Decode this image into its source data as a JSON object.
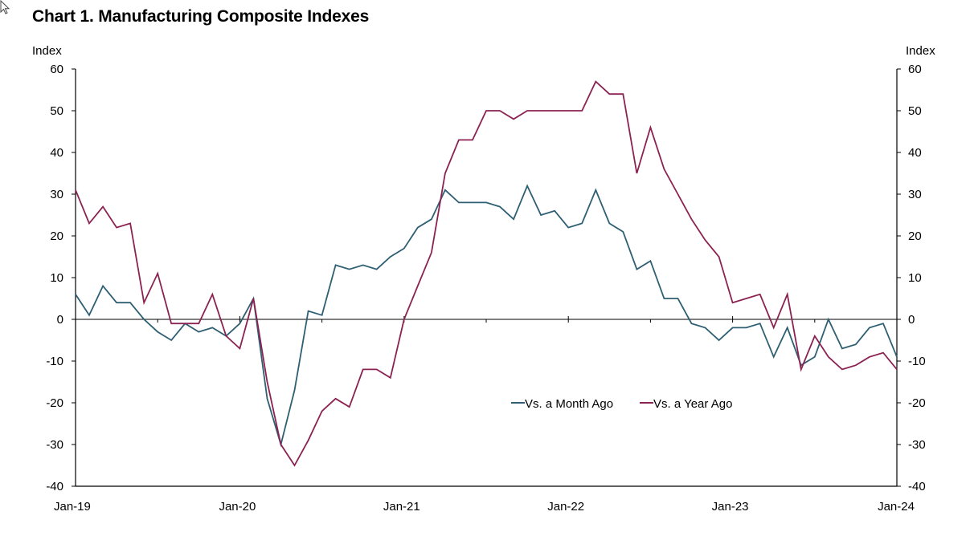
{
  "chart_data": {
    "type": "line",
    "title": "Chart 1. Manufacturing Composite Indexes",
    "ylabel_left": "Index",
    "ylabel_right": "Index",
    "ylim": [
      -40,
      60
    ],
    "yticks": [
      60,
      50,
      40,
      30,
      20,
      10,
      0,
      -10,
      -20,
      -30,
      -40
    ],
    "xtick_labels": [
      "Jan-19",
      "Jan-20",
      "Jan-21",
      "Jan-22",
      "Jan-23",
      "Jan-24"
    ],
    "x": [
      "2019-01",
      "2019-02",
      "2019-03",
      "2019-04",
      "2019-05",
      "2019-06",
      "2019-07",
      "2019-08",
      "2019-09",
      "2019-10",
      "2019-11",
      "2019-12",
      "2020-01",
      "2020-02",
      "2020-03",
      "2020-04",
      "2020-05",
      "2020-06",
      "2020-07",
      "2020-08",
      "2020-09",
      "2020-10",
      "2020-11",
      "2020-12",
      "2021-01",
      "2021-02",
      "2021-03",
      "2021-04",
      "2021-05",
      "2021-06",
      "2021-07",
      "2021-08",
      "2021-09",
      "2021-10",
      "2021-11",
      "2021-12",
      "2022-01",
      "2022-02",
      "2022-03",
      "2022-04",
      "2022-05",
      "2022-06",
      "2022-07",
      "2022-08",
      "2022-09",
      "2022-10",
      "2022-11",
      "2022-12",
      "2023-01",
      "2023-02",
      "2023-03",
      "2023-04",
      "2023-05",
      "2023-06",
      "2023-07",
      "2023-08",
      "2023-09",
      "2023-10",
      "2023-11",
      "2023-12",
      "2024-01"
    ],
    "legend_position": "lower-right inside",
    "grid": false,
    "series": [
      {
        "name": "Vs. a Month Ago",
        "color": "#2e5f73",
        "values": [
          6,
          1,
          8,
          4,
          4,
          0,
          -3,
          -5,
          -1,
          -3,
          -2,
          -4,
          -1,
          5,
          -19,
          -30,
          -17,
          2,
          1,
          13,
          12,
          13,
          12,
          15,
          17,
          22,
          24,
          31,
          28,
          28,
          28,
          27,
          24,
          32,
          25,
          26,
          22,
          23,
          31,
          23,
          21,
          12,
          14,
          5,
          5,
          -1,
          -2,
          -5,
          -2,
          -2,
          -1,
          -9,
          -2,
          -11,
          -9,
          0,
          -7,
          -6,
          -2,
          -1,
          -9
        ]
      },
      {
        "name": "Vs. a Year Ago",
        "color": "#8b2252",
        "values": [
          31,
          23,
          27,
          22,
          23,
          4,
          11,
          -1,
          -1,
          -1,
          6,
          -4,
          -7,
          5,
          -15,
          -30,
          -35,
          -29,
          -22,
          -19,
          -21,
          -12,
          -12,
          -14,
          0,
          8,
          16,
          35,
          43,
          43,
          50,
          50,
          48,
          50,
          50,
          50,
          50,
          50,
          57,
          54,
          54,
          35,
          46,
          36,
          30,
          24,
          19,
          15,
          4,
          5,
          6,
          -2,
          6,
          -12,
          -4,
          -9,
          -12,
          -11,
          -9,
          -8,
          -12
        ]
      }
    ]
  }
}
